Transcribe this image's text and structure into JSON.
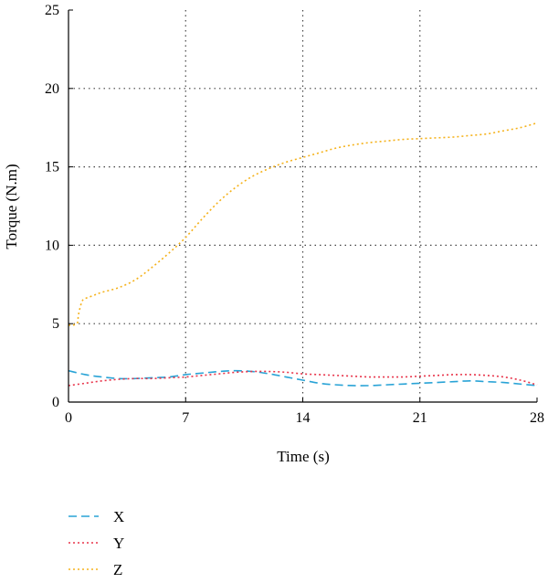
{
  "chart_data": {
    "type": "line",
    "title": "",
    "xlabel": "Time (s)",
    "ylabel": "Torque (N.m)",
    "xlim": [
      0,
      28
    ],
    "ylim": [
      0,
      25
    ],
    "x_ticks": [
      0,
      7,
      14,
      21,
      28
    ],
    "y_ticks": [
      0,
      5,
      10,
      15,
      20,
      25
    ],
    "grid": true,
    "legend_position": "below",
    "series": [
      {
        "name": "X",
        "color": "#29a3d6",
        "dash": "dashed",
        "x": [
          0,
          1,
          2,
          3,
          4,
          5,
          6,
          7,
          8,
          9,
          10,
          11,
          12,
          13,
          14,
          15,
          16,
          17,
          18,
          19,
          20,
          21,
          22,
          23,
          24,
          25,
          26,
          27,
          28
        ],
        "y": [
          2.0,
          1.75,
          1.6,
          1.5,
          1.5,
          1.55,
          1.6,
          1.75,
          1.85,
          1.95,
          2.0,
          1.95,
          1.8,
          1.6,
          1.4,
          1.2,
          1.1,
          1.05,
          1.05,
          1.1,
          1.15,
          1.2,
          1.25,
          1.3,
          1.35,
          1.3,
          1.25,
          1.15,
          1.05
        ]
      },
      {
        "name": "Y",
        "color": "#e8344a",
        "dash": "dotted",
        "x": [
          0,
          1,
          2,
          3,
          4,
          5,
          6,
          7,
          8,
          9,
          10,
          11,
          12,
          13,
          14,
          15,
          16,
          17,
          18,
          19,
          20,
          21,
          22,
          23,
          24,
          25,
          26,
          27,
          28
        ],
        "y": [
          1.05,
          1.2,
          1.35,
          1.45,
          1.5,
          1.5,
          1.55,
          1.6,
          1.7,
          1.8,
          1.9,
          1.95,
          1.95,
          1.9,
          1.8,
          1.75,
          1.7,
          1.65,
          1.6,
          1.6,
          1.6,
          1.65,
          1.7,
          1.75,
          1.75,
          1.7,
          1.6,
          1.4,
          1.1
        ]
      },
      {
        "name": "Z",
        "color": "#f5b21b",
        "dash": "dotted",
        "x": [
          0,
          0.5,
          0.6,
          0.8,
          1,
          1.5,
          2,
          3,
          4,
          5,
          6,
          7,
          8,
          9,
          10,
          11,
          12,
          13,
          14,
          15,
          16,
          17,
          18,
          19,
          20,
          21,
          22,
          23,
          24,
          25,
          26,
          27,
          28
        ],
        "y": [
          4.9,
          5.0,
          5.6,
          6.4,
          6.6,
          6.8,
          7.0,
          7.3,
          7.8,
          8.6,
          9.5,
          10.5,
          11.7,
          12.8,
          13.7,
          14.4,
          14.9,
          15.3,
          15.6,
          15.9,
          16.2,
          16.4,
          16.55,
          16.65,
          16.75,
          16.8,
          16.85,
          16.9,
          17.0,
          17.1,
          17.3,
          17.5,
          17.8
        ]
      }
    ]
  }
}
